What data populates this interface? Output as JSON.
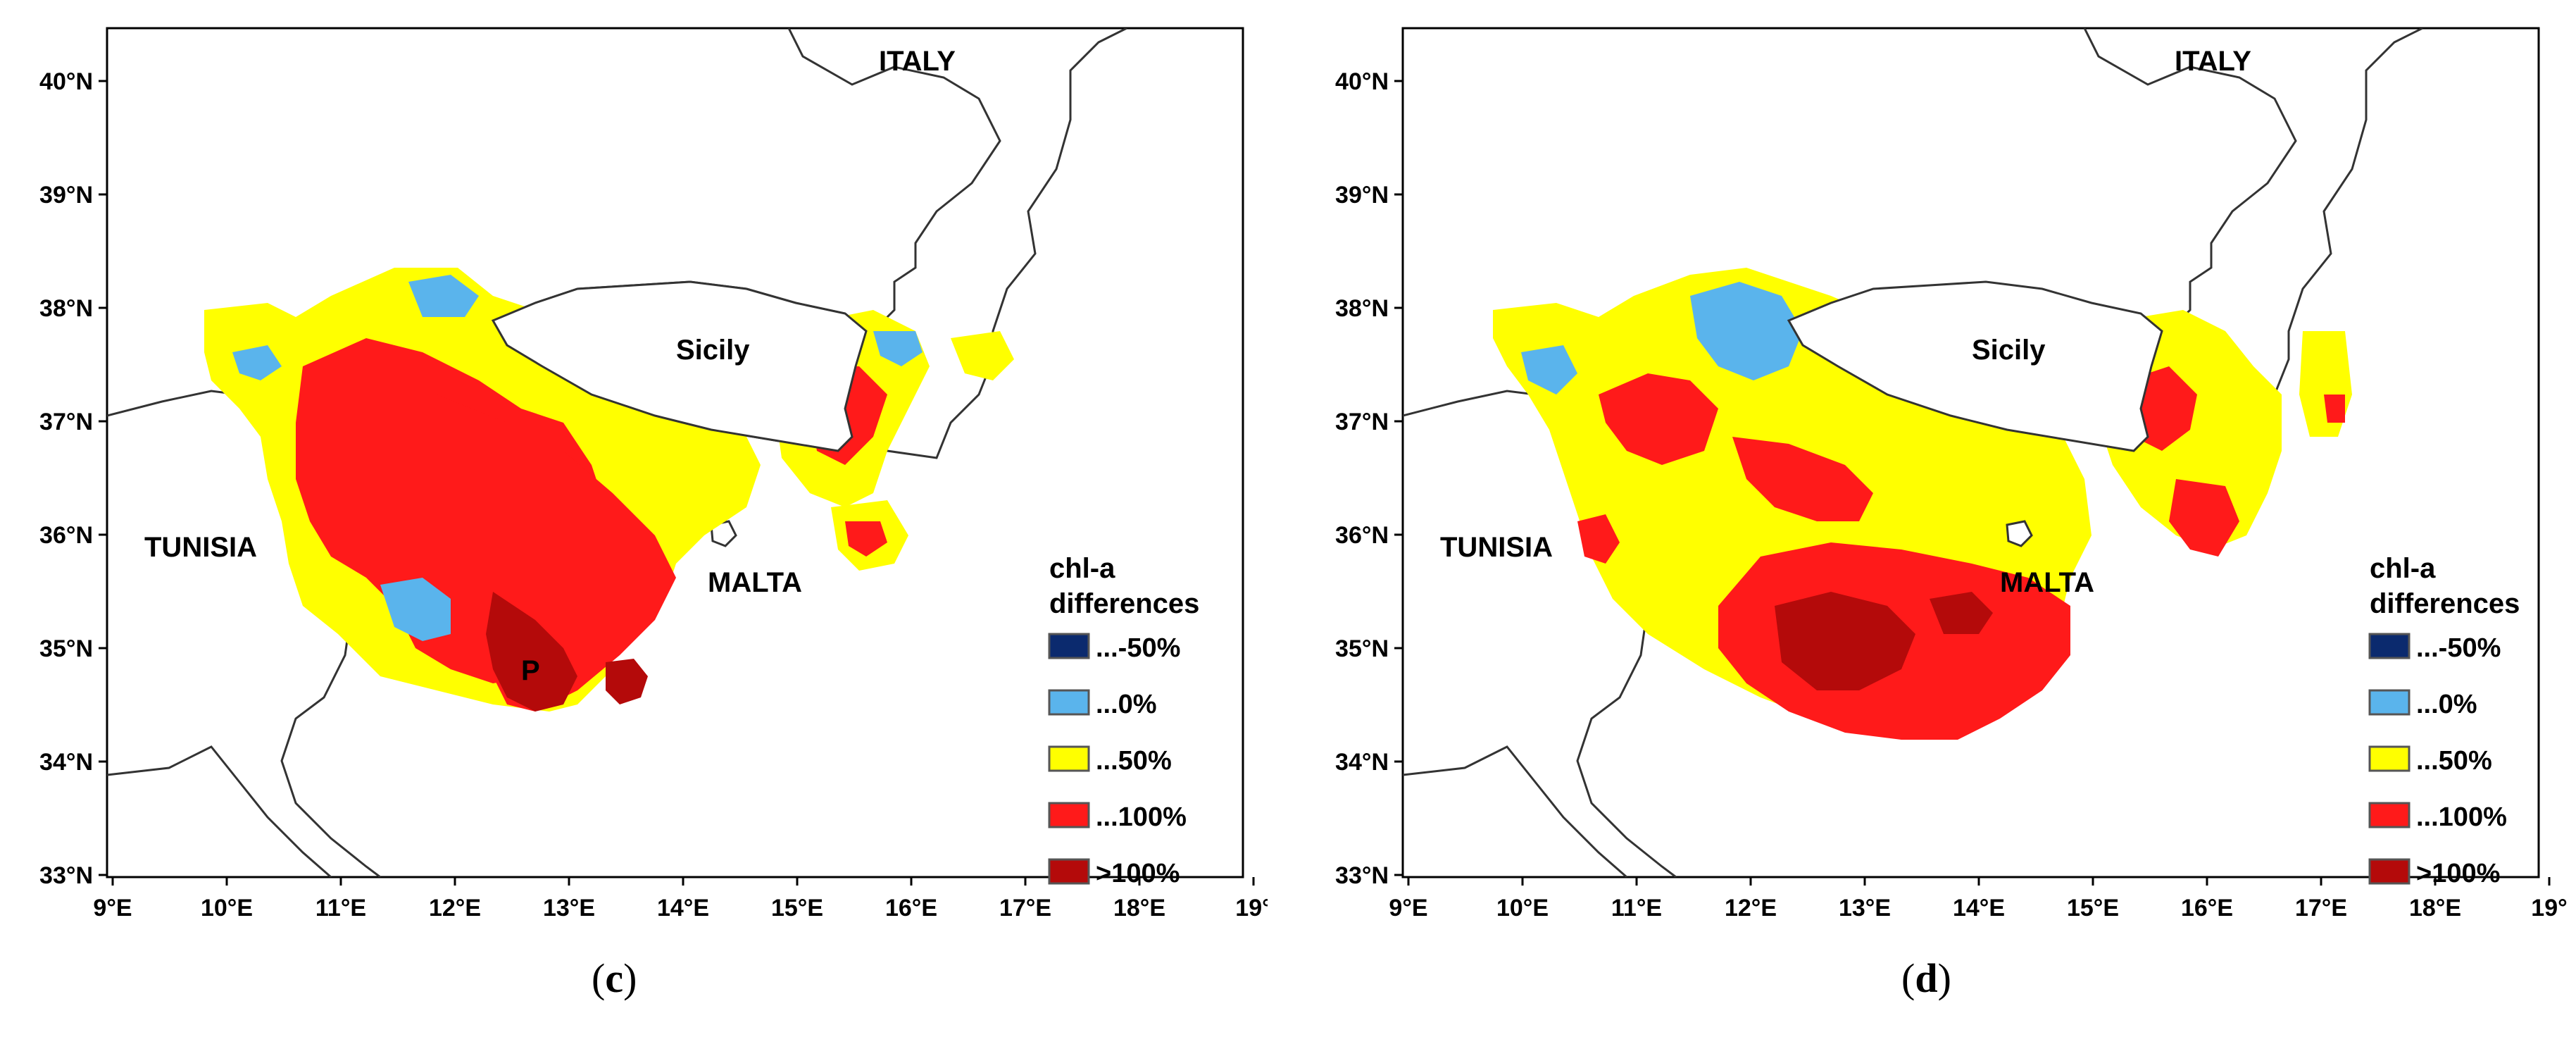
{
  "lat_ticks": [
    "40°N",
    "39°N",
    "38°N",
    "37°N",
    "36°N",
    "35°N",
    "34°N",
    "33°N"
  ],
  "lon_ticks": [
    "9°E",
    "10°E",
    "11°E",
    "12°E",
    "13°E",
    "14°E",
    "15°E",
    "16°E",
    "17°E",
    "18°E",
    "19°"
  ],
  "places": {
    "italy": "ITALY",
    "sicily": "Sicily",
    "tunisia": "TUNISIA",
    "malta": "MALTA",
    "p_marker": "P"
  },
  "legend": {
    "title_line1": "chl-a",
    "title_line2": "differences",
    "items": [
      {
        "label": "...-50%",
        "color": "#0b2a6e"
      },
      {
        "label": "...0%",
        "color": "#5ab4ec"
      },
      {
        "label": "...50%",
        "color": "#ffff00"
      },
      {
        "label": "...100%",
        "color": "#ff1a1a"
      },
      {
        "label": ">100%",
        "color": "#b40a0a"
      }
    ]
  },
  "panels": [
    {
      "id": "c",
      "caption_open": "(",
      "caption_letter": "c",
      "caption_close": ")"
    },
    {
      "id": "d",
      "caption_open": "(",
      "caption_letter": "d",
      "caption_close": ")"
    }
  ]
}
